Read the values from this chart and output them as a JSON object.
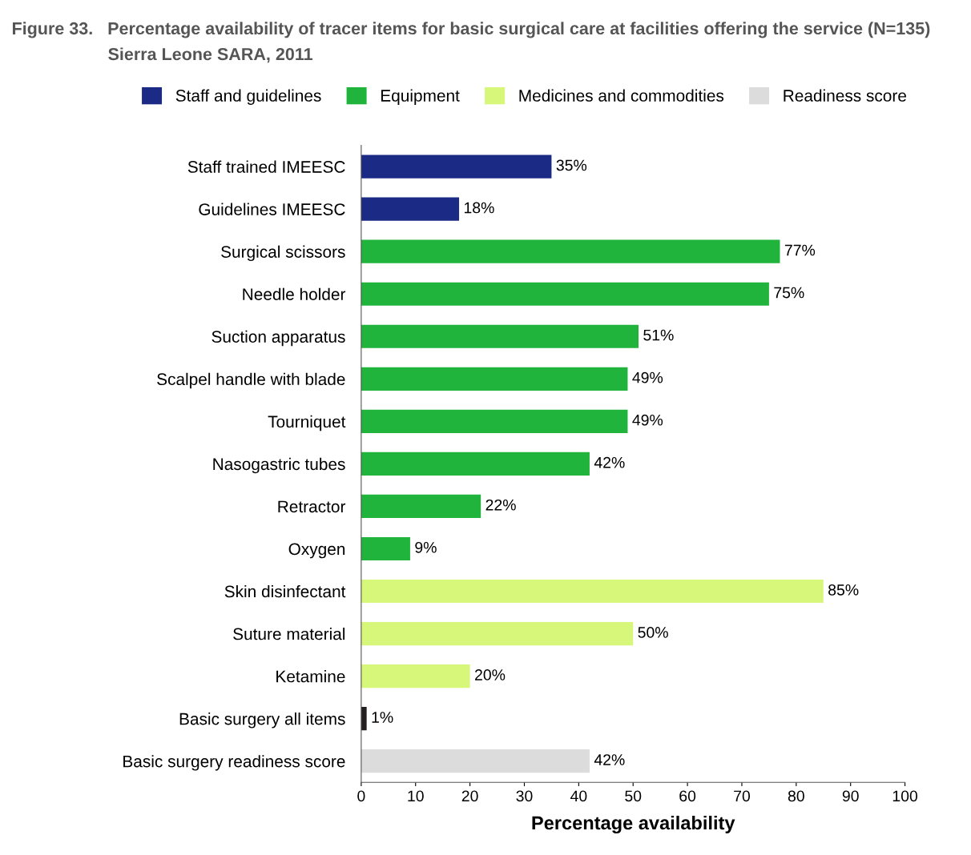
{
  "chart_data": {
    "type": "bar",
    "orientation": "horizontal",
    "title": "Figure 33.   Percentage availability of tracer items for basic surgical care at facilities offering the service (N=135)",
    "subtitle": "Sierra Leone SARA, 2011",
    "xlabel": "Percentage availability",
    "categories": [
      "Staff trained IMEESC",
      "Guidelines IMEESC",
      "Surgical scissors",
      "Needle holder",
      "Suction apparatus",
      "Scalpel handle with blade",
      "Tourniquet",
      "Nasogastric tubes",
      "Retractor",
      "Oxygen",
      "Skin disinfectant",
      "Suture material",
      "Ketamine",
      "Basic surgery all items",
      "Basic surgery readiness score"
    ],
    "series": [
      {
        "name": "Staff and guidelines",
        "color": "#1b2a84",
        "values": [
          35,
          18,
          null,
          null,
          null,
          null,
          null,
          null,
          null,
          null,
          null,
          null,
          null,
          null,
          null
        ],
        "value_labels": [
          "35%",
          "18%",
          null,
          null,
          null,
          null,
          null,
          null,
          null,
          null,
          null,
          null,
          null,
          null,
          null
        ]
      },
      {
        "name": "Equipment",
        "color": "#21b43d",
        "values": [
          null,
          null,
          77,
          75,
          51,
          49,
          49,
          42,
          22,
          9,
          null,
          null,
          null,
          null,
          null
        ],
        "value_labels": [
          null,
          null,
          "77%",
          "75%",
          "51%",
          "49%",
          "49%",
          "42%",
          "22%",
          "9%",
          null,
          null,
          null,
          null,
          null
        ]
      },
      {
        "name": "Medicines and commodities",
        "color": "#d6f77a",
        "values": [
          null,
          null,
          null,
          null,
          null,
          null,
          null,
          null,
          null,
          null,
          85,
          50,
          20,
          null,
          null
        ],
        "value_labels": [
          null,
          null,
          null,
          null,
          null,
          null,
          null,
          null,
          null,
          null,
          "85%",
          "50%",
          "20%",
          null,
          null
        ]
      },
      {
        "color": "#231f20",
        "values": [
          null,
          null,
          null,
          null,
          null,
          null,
          null,
          null,
          null,
          null,
          null,
          null,
          null,
          1,
          null
        ],
        "value_labels": [
          null,
          null,
          null,
          null,
          null,
          null,
          null,
          null,
          null,
          null,
          null,
          null,
          null,
          "1%",
          null
        ]
      },
      {
        "name": "Readiness score",
        "color": "#dcdcdc",
        "values": [
          null,
          null,
          null,
          null,
          null,
          null,
          null,
          null,
          null,
          null,
          null,
          null,
          null,
          null,
          42
        ],
        "value_labels": [
          null,
          null,
          null,
          null,
          null,
          null,
          null,
          null,
          null,
          null,
          null,
          null,
          null,
          null,
          "42%"
        ]
      }
    ],
    "xlim": [
      0,
      100
    ],
    "xticks": [
      0,
      10,
      20,
      30,
      40,
      50,
      60,
      70,
      80,
      90,
      100
    ],
    "grid": false,
    "legend": "top"
  }
}
